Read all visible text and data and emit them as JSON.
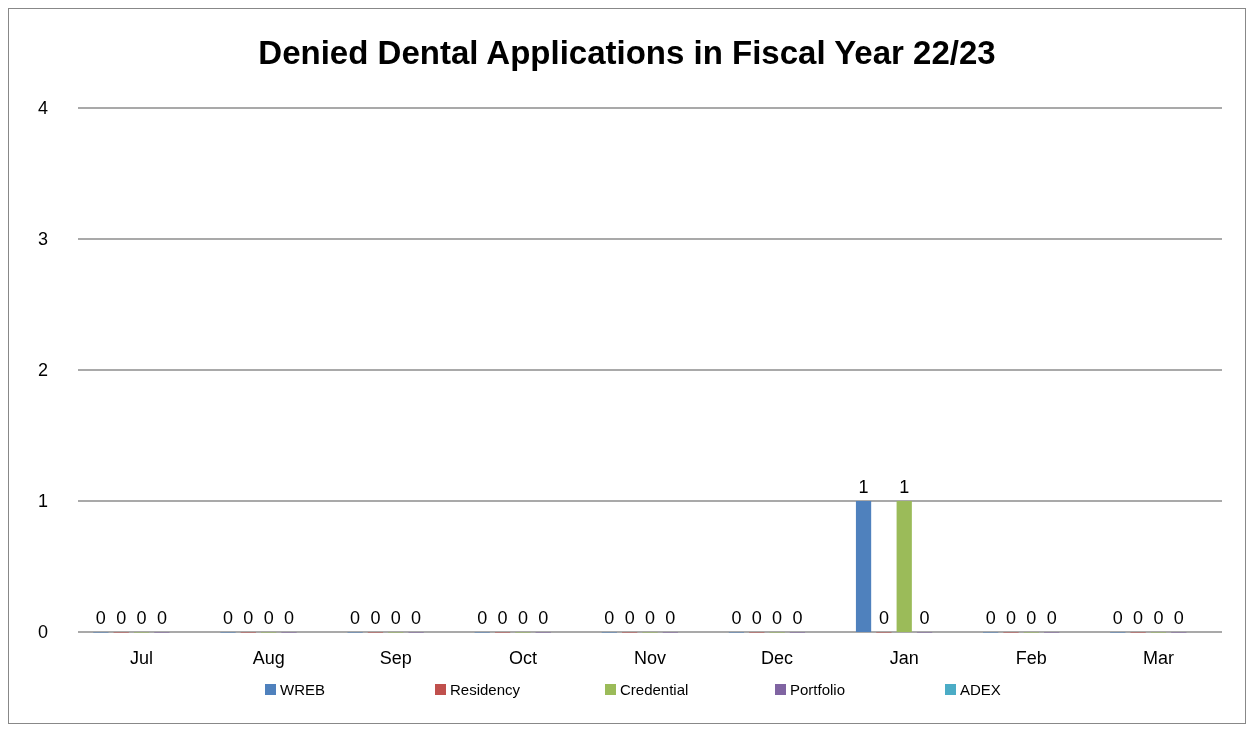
{
  "chart_data": {
    "type": "bar",
    "title": "Denied Dental Applications in Fiscal Year 22/23",
    "categories": [
      "Jul",
      "Aug",
      "Sep",
      "Oct",
      "Nov",
      "Dec",
      "Jan",
      "Feb",
      "Mar"
    ],
    "series": [
      {
        "name": "WREB",
        "color": "#4f81bd",
        "values": [
          0,
          0,
          0,
          0,
          0,
          0,
          1,
          0,
          0
        ]
      },
      {
        "name": "Residency",
        "color": "#c0504d",
        "values": [
          0,
          0,
          0,
          0,
          0,
          0,
          0,
          0,
          0
        ]
      },
      {
        "name": "Credential",
        "color": "#9bbb59",
        "values": [
          0,
          0,
          0,
          0,
          0,
          0,
          1,
          0,
          0
        ]
      },
      {
        "name": "Portfolio",
        "color": "#8064a2",
        "values": [
          0,
          0,
          0,
          0,
          0,
          0,
          0,
          0,
          0
        ]
      },
      {
        "name": "ADEX",
        "color": "#4bacc6",
        "values": [
          null,
          null,
          null,
          null,
          null,
          null,
          null,
          null,
          null
        ]
      }
    ],
    "ylim": [
      0,
      4
    ],
    "yticks": [
      0,
      1,
      2,
      3,
      4
    ],
    "grid": "y",
    "legend": "bottom",
    "data_labels": true
  }
}
